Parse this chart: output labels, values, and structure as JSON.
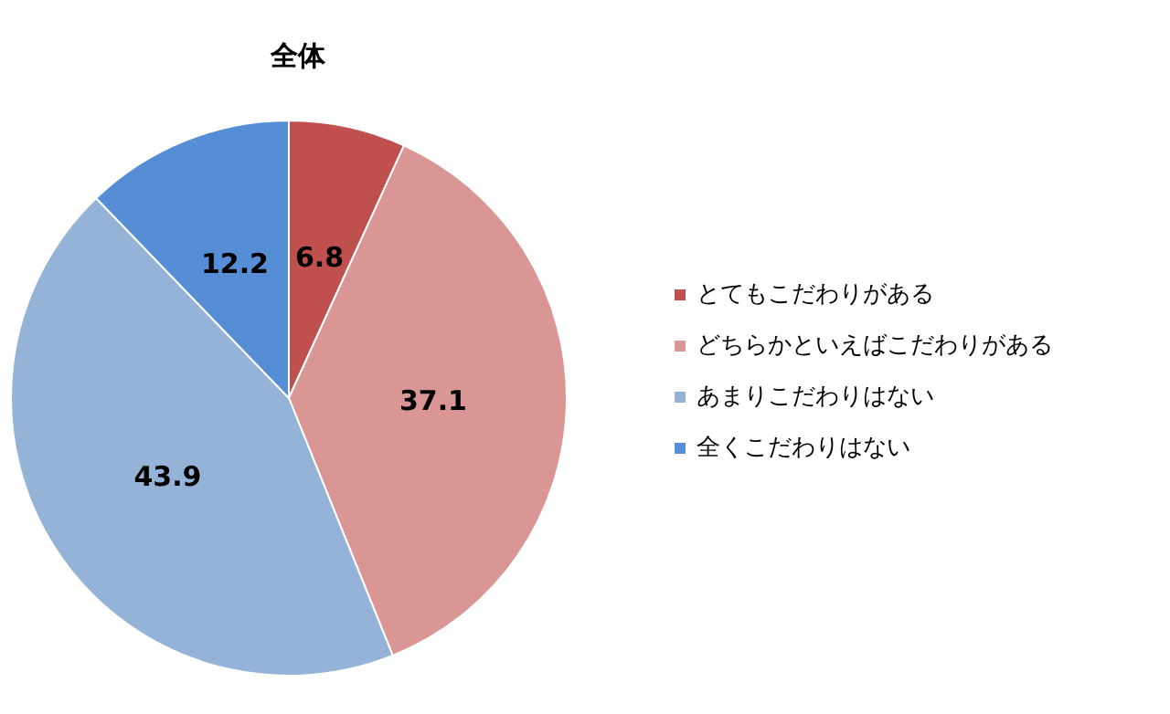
{
  "chart_data": {
    "type": "pie",
    "title": "全体",
    "categories": [
      "とてもこだわりがある",
      "どちらかといえばこだわりがある",
      "あまりこだわりはない",
      "全くこだわりはない"
    ],
    "values": [
      6.8,
      37.1,
      43.9,
      12.2
    ],
    "colors": [
      "#c0504d",
      "#d99694",
      "#95b3d7",
      "#558ed5"
    ],
    "data_labels": true,
    "legend": "right"
  }
}
